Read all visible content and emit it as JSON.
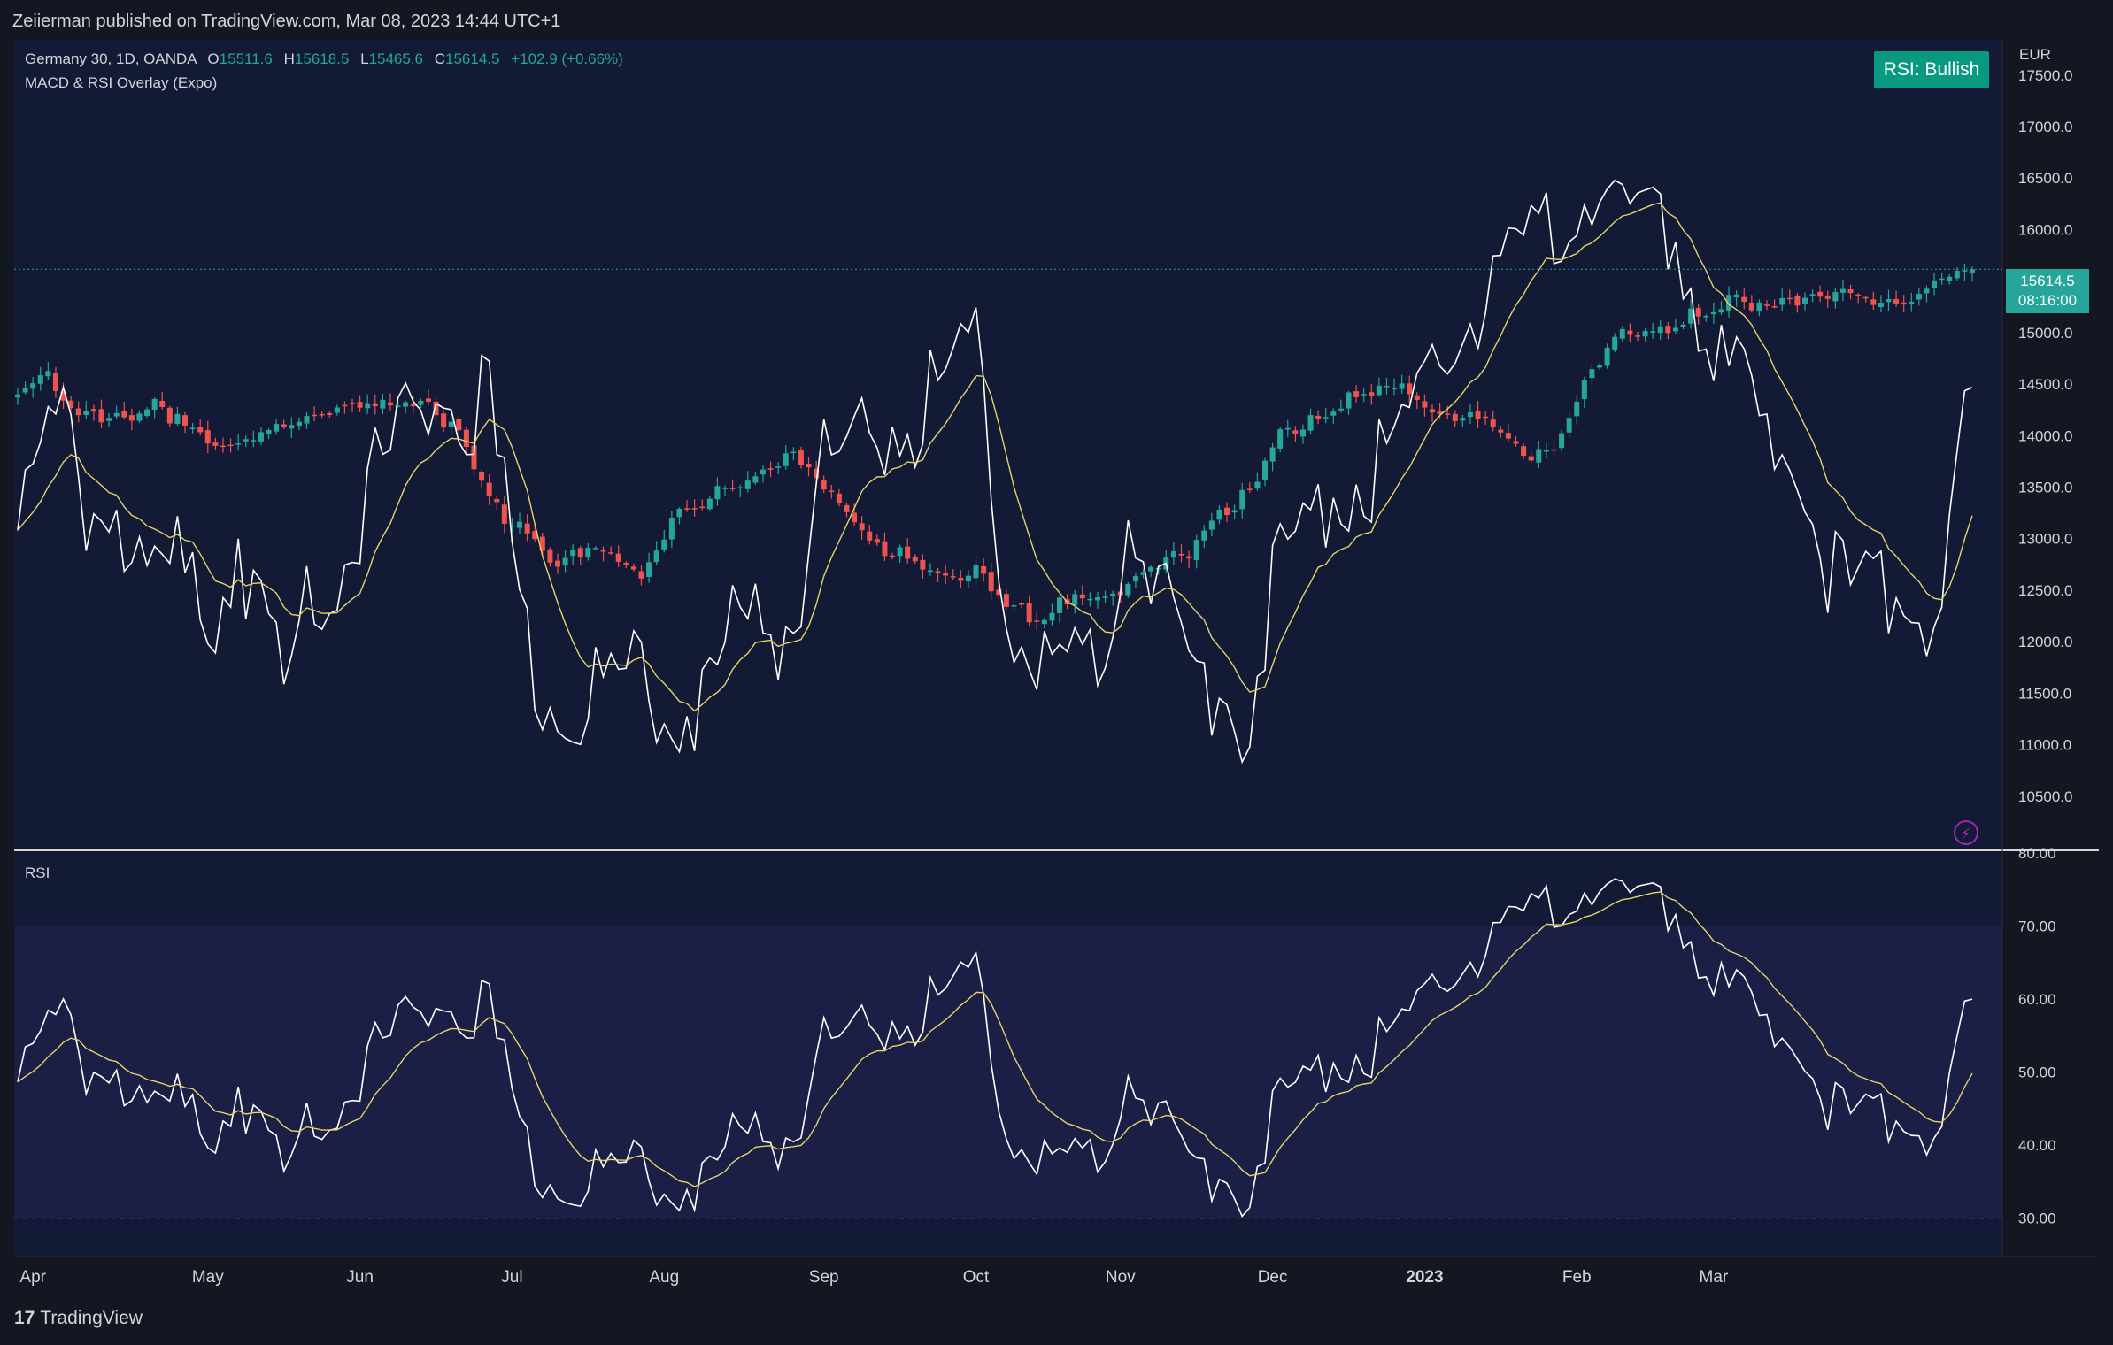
{
  "publish_line": "Zeiierman published on TradingView.com, Mar 08, 2023 14:44 UTC+1",
  "header": {
    "symbol": "Germany 30, 1D, OANDA",
    "open_label": "O",
    "open": "15511.6",
    "high_label": "H",
    "high": "15618.5",
    "low_label": "L",
    "low": "15465.6",
    "close_label": "C",
    "close": "15614.5",
    "change": "+102.9 (+0.66%)",
    "indicator": "MACD & RSI Overlay (Expo)"
  },
  "badge": "RSI: Bullish",
  "currency": "EUR",
  "last_price": {
    "value": "15614.5",
    "countdown": "08:16:00"
  },
  "rsi_pane_label": "RSI",
  "footer": "TradingView",
  "colors": {
    "background": "#131722",
    "plot_bg": "#131a35",
    "rsi_band": "#1c1f45",
    "up": "#26a69a",
    "down": "#ef5350",
    "overlay": "#ffffff",
    "signal": "#e6d36a",
    "bull_overlay": "#089981"
  },
  "chart_data": [
    {
      "type": "candlestick",
      "title": "Germany 30, 1D, OANDA",
      "ylim": [
        10000,
        17850
      ],
      "y_ticks": [
        "10500.0",
        "11000.0",
        "11500.0",
        "12000.0",
        "12500.0",
        "13000.0",
        "13500.0",
        "14000.0",
        "14500.0",
        "15000.0",
        "15500.0",
        "16000.0",
        "16500.0",
        "17000.0",
        "17500.0"
      ],
      "x_ticks": [
        "Apr",
        "May",
        "Jun",
        "Jul",
        "Aug",
        "Sep",
        "Oct",
        "Nov",
        "Dec",
        "2023",
        "Feb",
        "Mar"
      ],
      "price_anchors": [
        [
          0,
          14300
        ],
        [
          4,
          14600
        ],
        [
          8,
          14300
        ],
        [
          14,
          14100
        ],
        [
          18,
          14250
        ],
        [
          22,
          14200
        ],
        [
          28,
          13800
        ],
        [
          32,
          14000
        ],
        [
          38,
          14250
        ],
        [
          42,
          14200
        ],
        [
          48,
          14300
        ],
        [
          54,
          14350
        ],
        [
          58,
          13950
        ],
        [
          62,
          13300
        ],
        [
          66,
          13200
        ],
        [
          70,
          12800
        ],
        [
          74,
          12800
        ],
        [
          78,
          12850
        ],
        [
          82,
          12700
        ],
        [
          86,
          13200
        ],
        [
          90,
          13300
        ],
        [
          94,
          13550
        ],
        [
          98,
          13700
        ],
        [
          102,
          13800
        ],
        [
          106,
          13450
        ],
        [
          110,
          13200
        ],
        [
          114,
          12900
        ],
        [
          118,
          12750
        ],
        [
          122,
          12550
        ],
        [
          126,
          12750
        ],
        [
          130,
          12400
        ],
        [
          134,
          12100
        ],
        [
          138,
          12450
        ],
        [
          142,
          12500
        ],
        [
          146,
          12550
        ],
        [
          150,
          12700
        ],
        [
          154,
          12900
        ],
        [
          158,
          13300
        ],
        [
          162,
          13400
        ],
        [
          166,
          14000
        ],
        [
          170,
          14200
        ],
        [
          174,
          14300
        ],
        [
          178,
          14350
        ],
        [
          182,
          14450
        ],
        [
          186,
          14300
        ],
        [
          190,
          14150
        ],
        [
          194,
          14050
        ],
        [
          198,
          13850
        ],
        [
          202,
          13900
        ],
        [
          206,
          14450
        ],
        [
          210,
          14900
        ],
        [
          214,
          15050
        ],
        [
          218,
          15100
        ],
        [
          222,
          15150
        ],
        [
          226,
          15300
        ],
        [
          230,
          15350
        ],
        [
          234,
          15350
        ],
        [
          238,
          15300
        ],
        [
          242,
          15400
        ],
        [
          246,
          15350
        ],
        [
          250,
          15300
        ],
        [
          254,
          15500
        ],
        [
          257,
          15614.5
        ]
      ],
      "note_series": [
        "MACD & RSI overlay (white)",
        "signal (yellow)"
      ]
    },
    {
      "type": "line",
      "title": "RSI",
      "ylim": [
        25,
        80
      ],
      "y_ticks": [
        "30.00",
        "40.00",
        "50.00",
        "60.00",
        "70.00",
        "80.00"
      ],
      "bands": [
        30,
        50,
        70
      ],
      "rsi_anchors": [
        [
          0,
          50
        ],
        [
          3,
          53
        ],
        [
          6,
          58
        ],
        [
          9,
          50
        ],
        [
          12,
          53
        ],
        [
          15,
          47
        ],
        [
          18,
          44
        ],
        [
          21,
          47
        ],
        [
          25,
          40
        ],
        [
          29,
          48
        ],
        [
          32,
          42
        ],
        [
          35,
          35
        ],
        [
          38,
          44
        ],
        [
          42,
          46
        ],
        [
          46,
          52
        ],
        [
          50,
          55
        ],
        [
          54,
          60
        ],
        [
          58,
          59
        ],
        [
          62,
          58
        ],
        [
          66,
          42
        ],
        [
          70,
          35
        ],
        [
          74,
          34
        ],
        [
          78,
          38
        ],
        [
          82,
          36
        ],
        [
          86,
          35
        ],
        [
          90,
          34
        ],
        [
          94,
          40
        ],
        [
          98,
          41
        ],
        [
          102,
          41
        ],
        [
          106,
          53
        ],
        [
          110,
          55
        ],
        [
          114,
          57
        ],
        [
          118,
          58
        ],
        [
          122,
          59
        ],
        [
          126,
          64
        ],
        [
          130,
          42
        ],
        [
          134,
          39
        ],
        [
          138,
          38
        ],
        [
          142,
          37
        ],
        [
          146,
          50
        ],
        [
          150,
          45
        ],
        [
          154,
          37
        ],
        [
          158,
          36
        ],
        [
          162,
          34
        ],
        [
          166,
          47
        ],
        [
          170,
          50
        ],
        [
          174,
          52
        ],
        [
          178,
          53
        ],
        [
          182,
          56
        ],
        [
          186,
          62
        ],
        [
          190,
          66
        ],
        [
          194,
          67
        ],
        [
          198,
          70
        ],
        [
          202,
          73
        ],
        [
          206,
          76
        ],
        [
          210,
          74
        ],
        [
          214,
          75
        ],
        [
          218,
          72
        ],
        [
          222,
          65
        ],
        [
          226,
          60
        ],
        [
          230,
          57
        ],
        [
          234,
          56
        ],
        [
          238,
          45
        ],
        [
          242,
          43
        ],
        [
          246,
          44
        ],
        [
          250,
          42
        ],
        [
          254,
          46
        ],
        [
          257,
          60
        ]
      ],
      "series": [
        {
          "name": "RSI",
          "color": "#ffffff"
        },
        {
          "name": "",
          "color": "#e6d36a"
        }
      ]
    }
  ]
}
